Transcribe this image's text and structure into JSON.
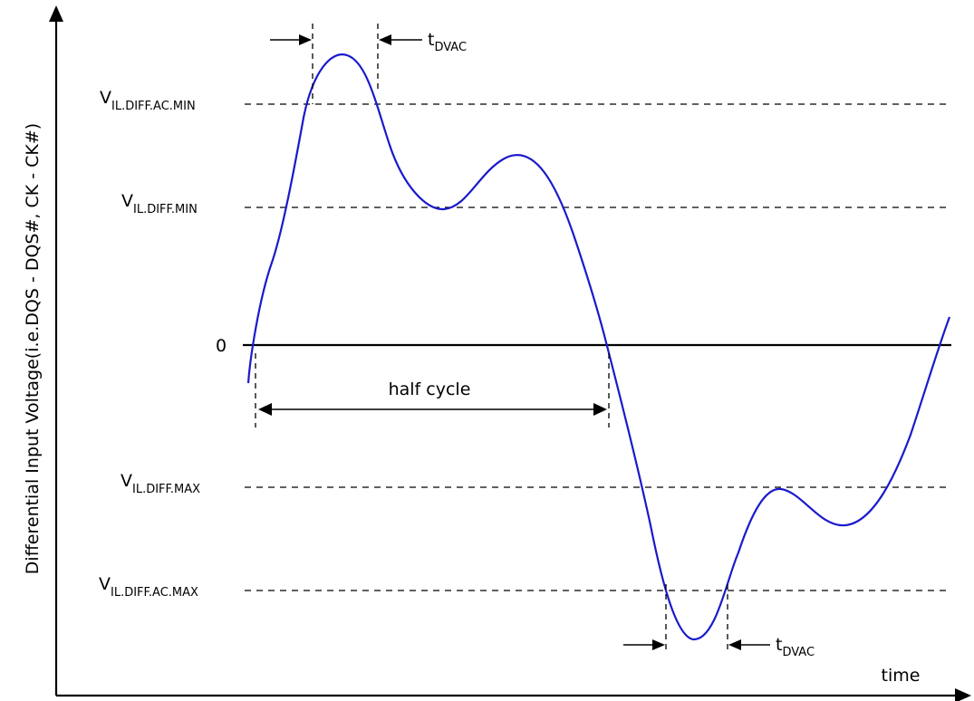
{
  "y_axis_label": "Differential Input Voltage(i.e.DQS - DQS#, CK - CK#)",
  "x_axis_label": "time",
  "zero_label": "0",
  "levels": {
    "ac_min": {
      "base": "V",
      "sub": "IL.DIFF.AC.MIN"
    },
    "min": {
      "base": "V",
      "sub": "IL.DIFF.MIN"
    },
    "max": {
      "base": "V",
      "sub": "IL.DIFF.MAX"
    },
    "ac_max": {
      "base": "V",
      "sub": "IL.DIFF.AC.MAX"
    }
  },
  "tdvac_top": {
    "base": "t",
    "sub": "DVAC"
  },
  "tdvac_bottom": {
    "base": "t",
    "sub": "DVAC"
  },
  "half_cycle_label": "half cycle",
  "colors": {
    "waveform": "#1a1acc",
    "lines": "#000000"
  }
}
